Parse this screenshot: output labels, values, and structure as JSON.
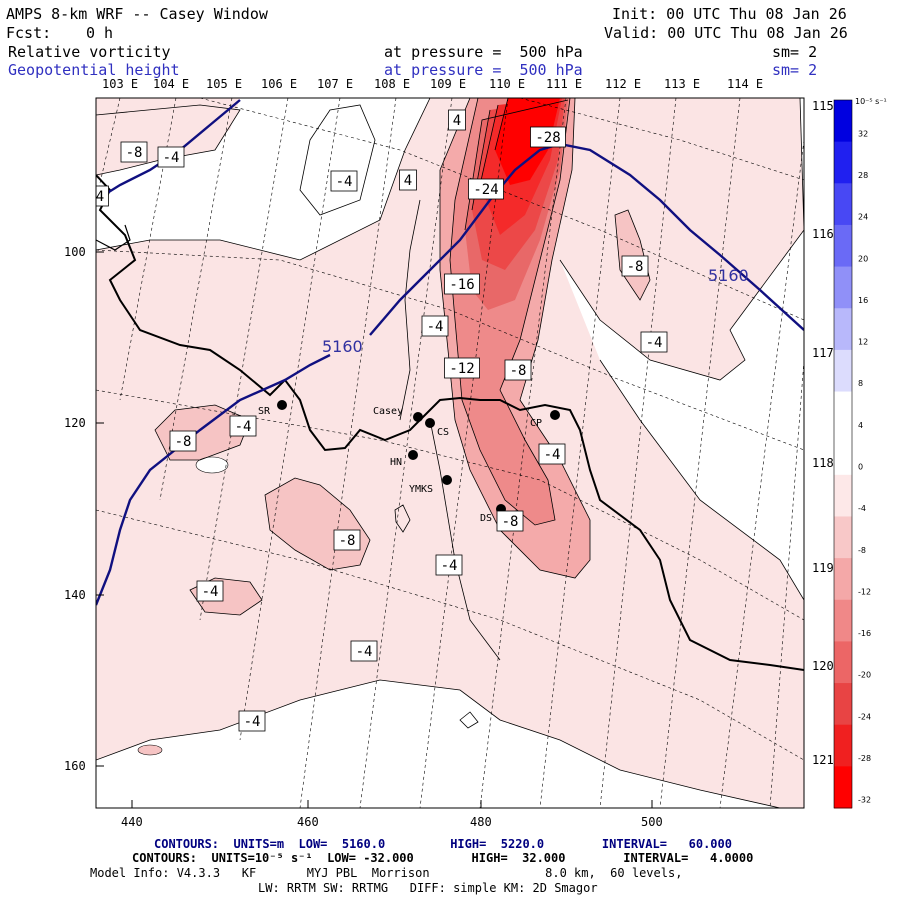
{
  "header": {
    "title": "AMPS 8-km WRF -- Casey Window",
    "fcst_label": "Fcst:",
    "fcst_value": "0 h",
    "init": "Init: 00 UTC Thu 08 Jan 26",
    "valid": "Valid: 00 UTC Thu 08 Jan 26",
    "field1_name": "Relative vorticity",
    "field1_level": "at pressure =  500 hPa",
    "field1_sm": "sm= 2",
    "field2_name": "Geopotential height",
    "field2_level": "at pressure =  500 hPa",
    "field2_sm": "sm= 2"
  },
  "top_longitudes": [
    "103 E",
    "104 E",
    "105 E",
    "106 E",
    "107 E",
    "108 E",
    "109 E",
    "110 E",
    "111 E",
    "112 E",
    "113 E",
    "114 E"
  ],
  "right_longitudes": [
    "115 E",
    "116 E",
    "117 E",
    "118 E",
    "119 E",
    "120 E",
    "121 E"
  ],
  "y_axis_ticks": [
    "100",
    "120",
    "140",
    "160"
  ],
  "x_axis_ticks": [
    "440",
    "460",
    "480",
    "500"
  ],
  "stations": [
    {
      "id": "SR",
      "label": "SR"
    },
    {
      "id": "casey",
      "label": "Casey"
    },
    {
      "id": "CS",
      "label": "CS"
    },
    {
      "id": "HN",
      "label": "HN"
    },
    {
      "id": "YMKS",
      "label": "YMKS"
    },
    {
      "id": "DS",
      "label": "DS"
    },
    {
      "id": "CP",
      "label": "CP"
    }
  ],
  "height_labels": [
    "5160",
    "5160"
  ],
  "vort_labels": [
    "-8",
    "-4",
    "4",
    "4",
    "-4",
    "4",
    "-28",
    "-24",
    "-16",
    "-4",
    "-12",
    "-8",
    "-8",
    "-4",
    "-8",
    "-4",
    "-4",
    "-8",
    "-8",
    "-4",
    "-4",
    "-4",
    "-4"
  ],
  "colorbar": {
    "unit": "10⁻⁵ s⁻¹",
    "labels": [
      "32",
      "28",
      "24",
      "20",
      "16",
      "12",
      "8",
      "4",
      "0",
      "-4",
      "-8",
      "-12",
      "-16",
      "-20",
      "-24",
      "-28",
      "-32"
    ],
    "colors": [
      "#0000e0",
      "#2020f0",
      "#4848f4",
      "#6a6af6",
      "#9090f8",
      "#b8b8fb",
      "#dcdcfd",
      "#ffffff",
      "#ffffff",
      "#fde8e8",
      "#f8c8c8",
      "#f4a8a8",
      "#f08888",
      "#ec6666",
      "#e84444",
      "#f02020",
      "#ff0000"
    ]
  },
  "footer": {
    "contours1": "CONTOURS:  UNITS=m  LOW=  5160.0         HIGH=  5220.0        INTERVAL=   60.000",
    "contours2": "CONTOURS:  UNITS=10⁻⁵ s⁻¹  LOW= -32.000        HIGH=  32.000        INTERVAL=   4.0000",
    "model_info": "Model Info: V4.3.3   KF       MYJ PBL  Morrison                8.0 km,  60 levels,",
    "physics": "LW: RRTM SW: RRTMG   DIFF: simple KM: 2D Smagor"
  }
}
